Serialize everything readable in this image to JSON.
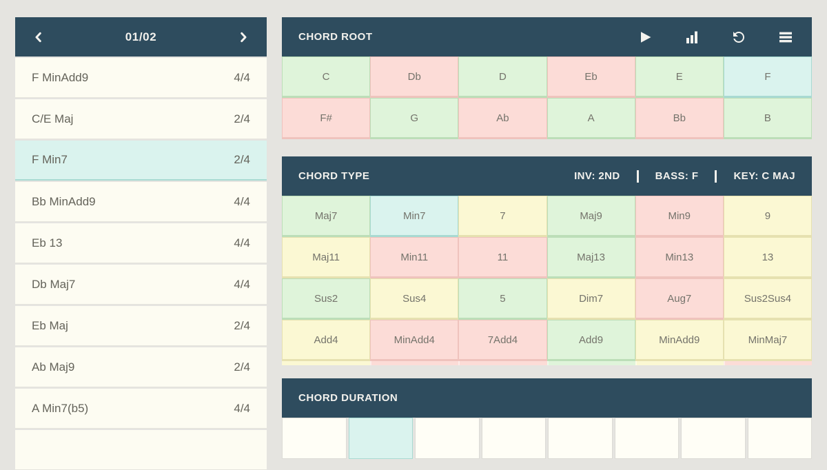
{
  "colors": {
    "header_bg": "#2e4c5e",
    "page_bg": "#e5e4e0",
    "cream": "#fdfcf2",
    "green": "#dff4da",
    "green_border": "#bcdeb8",
    "pink": "#fcdcd7",
    "pink_border": "#efc3bd",
    "yellow": "#fbf8d3",
    "yellow_border": "#e6e1b0",
    "cyan": "#daf3ee",
    "cyan_border": "#a8dad2"
  },
  "progression": {
    "page_indicator": "01/02",
    "prev_icon": "chevron-left",
    "next_icon": "chevron-right",
    "items": [
      {
        "name": "F MinAdd9",
        "duration": "4/4",
        "selected": false,
        "partial": false
      },
      {
        "name": "C/E Maj",
        "duration": "2/4",
        "selected": false,
        "partial": false
      },
      {
        "name": "F Min7",
        "duration": "2/4",
        "selected": true,
        "partial": false
      },
      {
        "name": "Bb MinAdd9",
        "duration": "4/4",
        "selected": false,
        "partial": false
      },
      {
        "name": "Eb 13",
        "duration": "4/4",
        "selected": false,
        "partial": false
      },
      {
        "name": "Db Maj7",
        "duration": "4/4",
        "selected": false,
        "partial": false
      },
      {
        "name": "Eb Maj",
        "duration": "2/4",
        "selected": false,
        "partial": false
      },
      {
        "name": "Ab Maj9",
        "duration": "2/4",
        "selected": false,
        "partial": false
      },
      {
        "name": "A Min7(b5)",
        "duration": "4/4",
        "selected": false,
        "partial": false
      },
      {
        "name": "",
        "duration": "",
        "selected": false,
        "partial": true
      }
    ]
  },
  "chord_root": {
    "title": "CHORD ROOT",
    "icons": [
      "play",
      "bar-chart",
      "rotate-left",
      "menu"
    ],
    "cells": [
      {
        "label": "C",
        "color": "green",
        "selected": false
      },
      {
        "label": "Db",
        "color": "pink",
        "selected": false
      },
      {
        "label": "D",
        "color": "green",
        "selected": false
      },
      {
        "label": "Eb",
        "color": "pink",
        "selected": false
      },
      {
        "label": "E",
        "color": "green",
        "selected": false
      },
      {
        "label": "F",
        "color": "cyan",
        "selected": true
      },
      {
        "label": "F#",
        "color": "pink",
        "selected": false
      },
      {
        "label": "G",
        "color": "green",
        "selected": false
      },
      {
        "label": "Ab",
        "color": "pink",
        "selected": false
      },
      {
        "label": "A",
        "color": "green",
        "selected": false
      },
      {
        "label": "Bb",
        "color": "pink",
        "selected": false
      },
      {
        "label": "B",
        "color": "green",
        "selected": false
      }
    ]
  },
  "chord_type": {
    "title": "CHORD TYPE",
    "inv": "INV: 2ND",
    "bass": "BASS: F",
    "key": "KEY: C MAJ",
    "cells": [
      {
        "label": "Maj7",
        "color": "green",
        "selected": false
      },
      {
        "label": "Min7",
        "color": "cyan",
        "selected": true
      },
      {
        "label": "7",
        "color": "yellow",
        "selected": false
      },
      {
        "label": "Maj9",
        "color": "green",
        "selected": false
      },
      {
        "label": "Min9",
        "color": "pink",
        "selected": false
      },
      {
        "label": "9",
        "color": "yellow",
        "selected": false
      },
      {
        "label": "Maj11",
        "color": "yellow",
        "selected": false
      },
      {
        "label": "Min11",
        "color": "pink",
        "selected": false
      },
      {
        "label": "11",
        "color": "pink",
        "selected": false
      },
      {
        "label": "Maj13",
        "color": "green",
        "selected": false
      },
      {
        "label": "Min13",
        "color": "pink",
        "selected": false
      },
      {
        "label": "13",
        "color": "yellow",
        "selected": false
      },
      {
        "label": "Sus2",
        "color": "green",
        "selected": false
      },
      {
        "label": "Sus4",
        "color": "yellow",
        "selected": false
      },
      {
        "label": "5",
        "color": "green",
        "selected": false
      },
      {
        "label": "Dim7",
        "color": "yellow",
        "selected": false
      },
      {
        "label": "Aug7",
        "color": "pink",
        "selected": false
      },
      {
        "label": "Sus2Sus4",
        "color": "yellow",
        "selected": false
      },
      {
        "label": "Add4",
        "color": "yellow",
        "selected": false
      },
      {
        "label": "MinAdd4",
        "color": "pink",
        "selected": false
      },
      {
        "label": "7Add4",
        "color": "pink",
        "selected": false
      },
      {
        "label": "Add9",
        "color": "green",
        "selected": false
      },
      {
        "label": "MinAdd9",
        "color": "yellow",
        "selected": false
      },
      {
        "label": "MinMaj7",
        "color": "yellow",
        "selected": false
      }
    ],
    "partial_row_colors": [
      "yellow",
      "pink",
      "pink",
      "green",
      "yellow",
      "pink"
    ]
  },
  "chord_duration": {
    "title": "CHORD DURATION",
    "cells": [
      {
        "selected": false
      },
      {
        "selected": true
      },
      {
        "selected": false
      },
      {
        "selected": false
      },
      {
        "selected": false
      },
      {
        "selected": false
      },
      {
        "selected": false
      },
      {
        "selected": false
      }
    ]
  }
}
